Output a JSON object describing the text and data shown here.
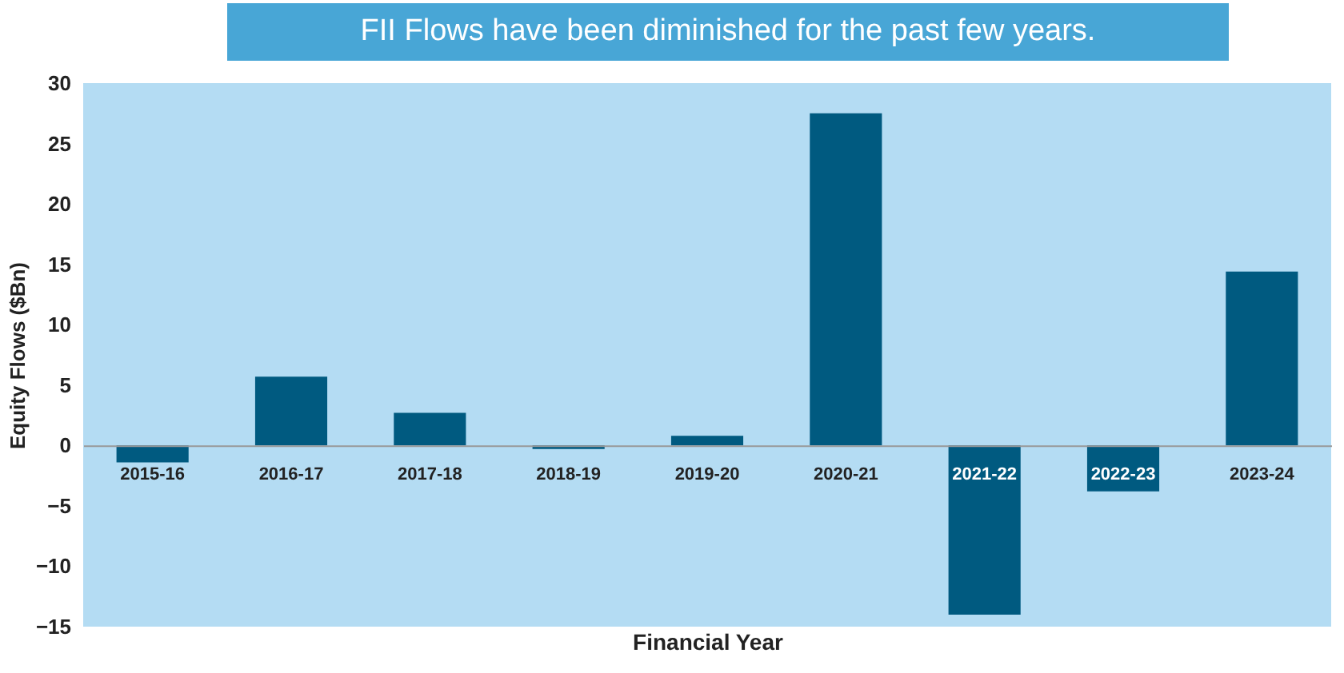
{
  "chart_data": {
    "type": "bar",
    "title": "FII Flows have been diminished for the past few years.",
    "xlabel": "Financial Year",
    "ylabel": "Equity Flows ($Bn)",
    "categories": [
      "2015-16",
      "2016-17",
      "2017-18",
      "2018-19",
      "2019-20",
      "2020-21",
      "2021-22",
      "2022-23",
      "2023-24"
    ],
    "values": [
      -1.4,
      5.7,
      2.7,
      -0.3,
      0.8,
      27.5,
      -14.0,
      -3.8,
      14.4
    ],
    "color": "#005a80",
    "ylim": [
      -15,
      30
    ],
    "yticks": [
      -15,
      -10,
      -5,
      0,
      5,
      10,
      15,
      20,
      25,
      30
    ],
    "grid": false
  }
}
